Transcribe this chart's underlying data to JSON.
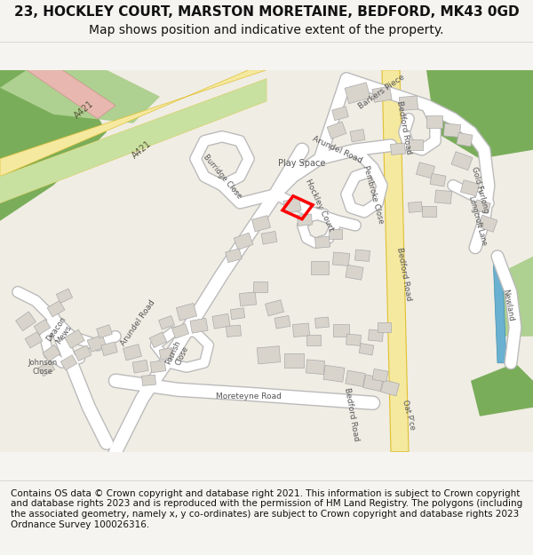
{
  "title_line1": "23, HOCKLEY COURT, MARSTON MORETAINE, BEDFORD, MK43 0GD",
  "title_line2": "Map shows position and indicative extent of the property.",
  "footer": "Contains OS data © Crown copyright and database right 2021. This information is subject to Crown copyright and database rights 2023 and is reproduced with the permission of HM Land Registry. The polygons (including the associated geometry, namely x, y co-ordinates) are subject to Crown copyright and database rights 2023 Ordnance Survey 100026316.",
  "bg_color": "#f5f4f0",
  "map_bg": "#f0ede4",
  "major_road_fill": "#f5e9a0",
  "major_road_outline": "#e0c030",
  "green_dark": "#7aad5a",
  "green_medium": "#aed090",
  "green_light": "#c8e0a0",
  "plot_fill": "#ff0000",
  "blue_stripe": "#6ab0d0",
  "title_fontsize": 11,
  "subtitle_fontsize": 10,
  "footer_fontsize": 7.5,
  "fig_width": 6.0,
  "fig_height": 6.25
}
